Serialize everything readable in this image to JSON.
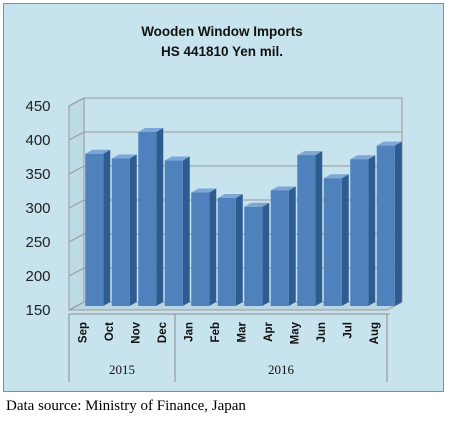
{
  "chart_data": {
    "type": "bar",
    "title": "Wooden Window Imports",
    "subtitle": "HS 441810 Yen mil.",
    "categories": [
      "Sep",
      "Oct",
      "Nov",
      "Dec",
      "Jan",
      "Feb",
      "Mar",
      "Apr",
      "May",
      "Jun",
      "Jul",
      "Aug"
    ],
    "groups": [
      {
        "label": "2015",
        "count": 4
      },
      {
        "label": "2016",
        "count": 8
      }
    ],
    "series": [
      {
        "values": [
          368,
          361,
          400,
          358,
          311,
          303,
          290,
          314,
          366,
          332,
          360,
          380
        ]
      }
    ],
    "ylim": [
      150,
      450
    ],
    "yticks": [
      150,
      200,
      250,
      300,
      350,
      400,
      450
    ],
    "grid": true,
    "style": "3d-bar",
    "colors": {
      "bar": "#4f81bd",
      "bar_side": "#2e5c91",
      "bar_top": "#7ea6d6",
      "background": "#c7e3ee",
      "plot_wall": "#c7e3ee",
      "gridline": "#9a9a9a"
    }
  },
  "source_note": "Data source: Ministry of Finance, Japan"
}
